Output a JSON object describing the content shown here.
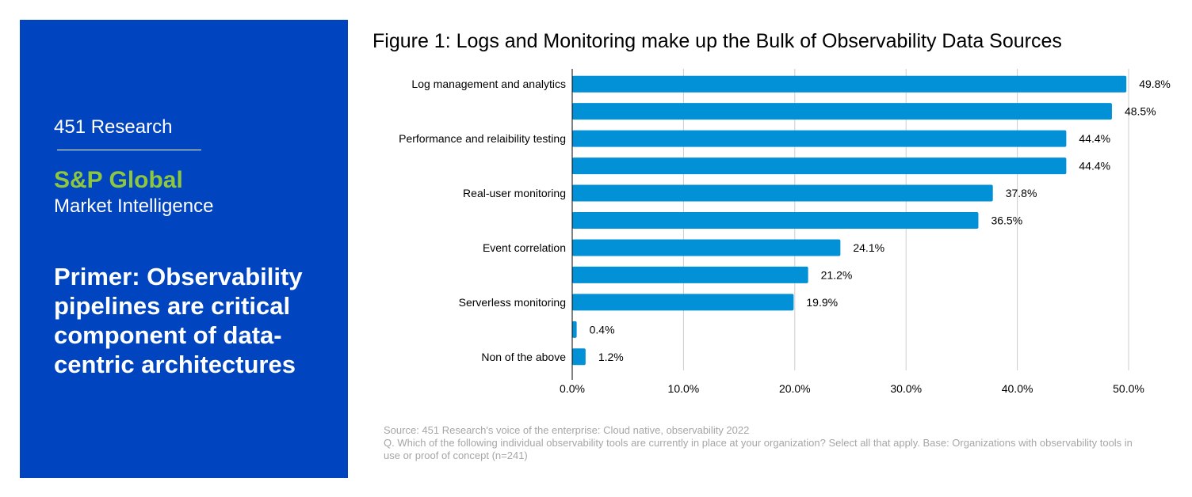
{
  "sidebar": {
    "brand_top": "451 Research",
    "brand_name": "S&P Global",
    "brand_sub": "Market Intelligence",
    "primer": "Primer: Observability pipelines are critical component of data-centric architectures"
  },
  "colors": {
    "panel": "#0044c0",
    "brand_green": "#8dc63f",
    "bar": "#0290d6",
    "grid": "#cccccc"
  },
  "chart_data": {
    "type": "bar",
    "orientation": "horizontal",
    "title": "Figure 1: Logs and Monitoring make up the Bulk of Observability Data Sources",
    "categories": [
      "Log management and analytics",
      "",
      "Performance and relaibility testing",
      "",
      "Real-user monitoring",
      "",
      "Event correlation",
      "",
      "Serverless monitoring",
      "",
      "Non of the above"
    ],
    "values": [
      49.8,
      48.5,
      44.4,
      44.4,
      37.8,
      36.5,
      24.1,
      21.2,
      19.9,
      0.4,
      1.2
    ],
    "value_labels": [
      "49.8%",
      "48.5%",
      "44.4%",
      "44.4%",
      "37.8%",
      "36.5%",
      "24.1%",
      "21.2%",
      "19.9%",
      "0.4%",
      "1.2%"
    ],
    "x_ticks": [
      0,
      10,
      20,
      30,
      40,
      50
    ],
    "x_tick_labels": [
      "0.0%",
      "10.0%",
      "20.0%",
      "30.0%",
      "40.0%",
      "50.0%"
    ],
    "xlim": [
      0,
      50
    ],
    "grid": true,
    "legend": false
  },
  "notes": {
    "source": "Source: 451 Research's voice of the enterprise: Cloud native, observability 2022",
    "question": "Q. Which of the following individual observability tools are currently in place at your organization? Select all that apply. Base: Organizations with observability tools in use or proof of concept (n=241)"
  }
}
